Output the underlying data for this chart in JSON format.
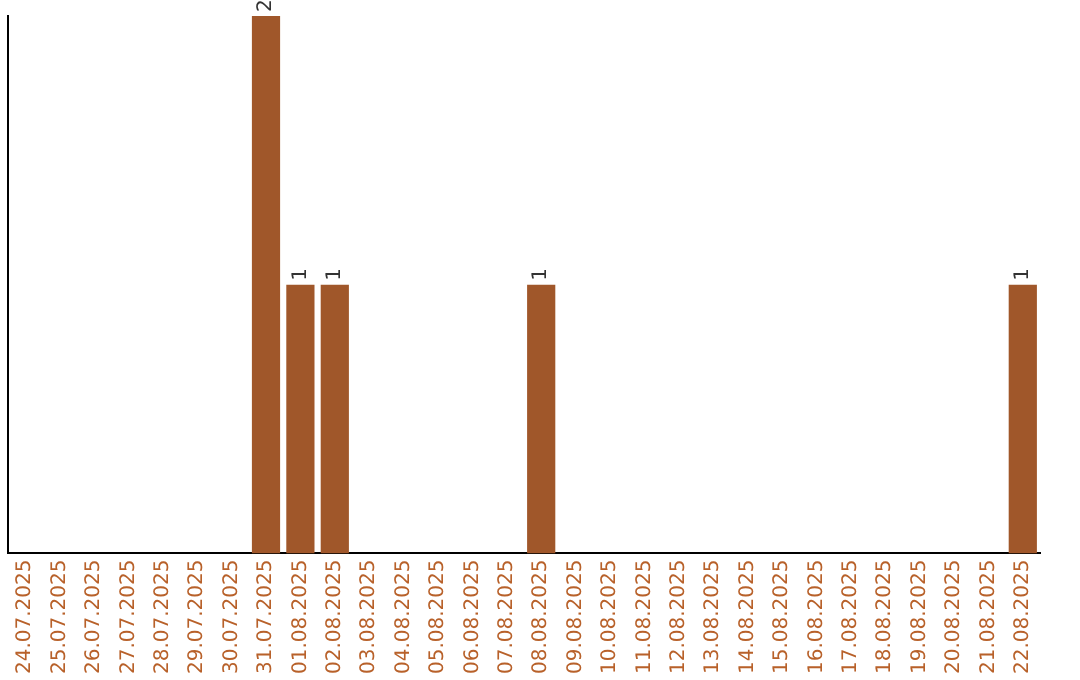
{
  "chart_data": {
    "type": "bar",
    "categories": [
      "24.07.2025",
      "25.07.2025",
      "26.07.2025",
      "27.07.2025",
      "28.07.2025",
      "29.07.2025",
      "30.07.2025",
      "31.07.2025",
      "01.08.2025",
      "02.08.2025",
      "03.08.2025",
      "04.08.2025",
      "05.08.2025",
      "06.08.2025",
      "07.08.2025",
      "08.08.2025",
      "09.08.2025",
      "10.08.2025",
      "11.08.2025",
      "12.08.2025",
      "13.08.2025",
      "14.08.2025",
      "15.08.2025",
      "16.08.2025",
      "17.08.2025",
      "18.08.2025",
      "19.08.2025",
      "20.08.2025",
      "21.08.2025",
      "22.08.2025"
    ],
    "values": [
      0,
      0,
      0,
      0,
      0,
      0,
      0,
      2,
      1,
      1,
      0,
      0,
      0,
      0,
      0,
      1,
      0,
      0,
      0,
      0,
      0,
      0,
      0,
      0,
      0,
      0,
      0,
      0,
      0,
      1
    ],
    "value_labels": [
      null,
      null,
      null,
      null,
      null,
      null,
      null,
      "2",
      "1",
      "1",
      null,
      null,
      null,
      null,
      null,
      "1",
      null,
      null,
      null,
      null,
      null,
      null,
      null,
      null,
      null,
      null,
      null,
      null,
      null,
      "1"
    ],
    "color": "#a0572a",
    "grid": false,
    "legend": false,
    "tick_labels": "x"
  }
}
